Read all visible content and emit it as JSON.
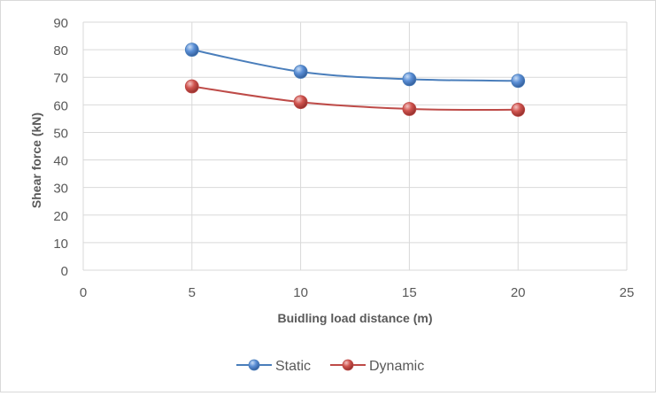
{
  "chart_data": {
    "type": "line",
    "title": "",
    "xlabel": "Buidling load distance (m)",
    "ylabel": "Shear force (kN)",
    "xlim": [
      0,
      25
    ],
    "ylim": [
      0,
      90
    ],
    "x_ticks": [
      0,
      5,
      10,
      15,
      20,
      25
    ],
    "y_ticks": [
      0,
      10,
      20,
      30,
      40,
      50,
      60,
      70,
      80,
      90
    ],
    "grid": true,
    "legend_position": "bottom",
    "x": [
      5,
      10,
      15,
      20
    ],
    "series": [
      {
        "name": "Static",
        "color": "#4a7ebb",
        "values": [
          80,
          72,
          69.3,
          68.7
        ]
      },
      {
        "name": "Dynamic",
        "color": "#be4b48",
        "values": [
          66.7,
          61,
          58.5,
          58.2
        ]
      }
    ]
  }
}
